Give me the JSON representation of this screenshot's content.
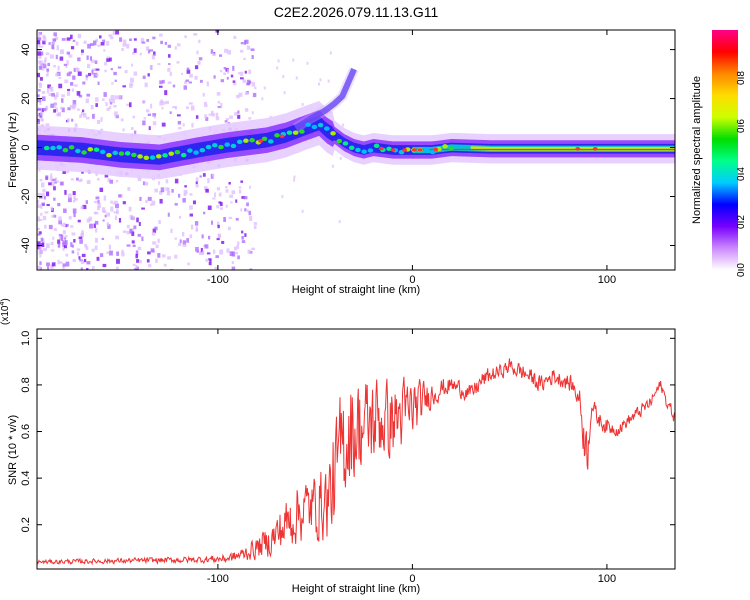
{
  "title": "C2E2.2026.079.11.13.G11",
  "chart_data": [
    {
      "type": "heatmap",
      "xlabel": "Height of straight line (km)",
      "ylabel": "Frequency (Hz)",
      "xlim": [
        -193,
        135
      ],
      "ylim": [
        -50,
        48
      ],
      "xticks": [
        -100,
        0,
        100
      ],
      "yticks": [
        -40,
        -20,
        0,
        20,
        40
      ],
      "grid": false,
      "ridge_frequency": {
        "x": [
          -193,
          -170,
          -150,
          -130,
          -110,
          -95,
          -85,
          -75,
          -65,
          -55,
          -48,
          -44,
          -40,
          -35,
          -30,
          -25,
          -20,
          -10,
          0,
          10,
          20,
          40,
          60,
          80,
          100,
          120,
          135
        ],
        "hz": [
          0,
          -1,
          -3,
          -4,
          -1,
          1,
          2,
          3,
          5,
          8,
          10,
          7,
          5,
          2,
          0,
          -1,
          0,
          -1,
          -1,
          -1,
          0,
          -0.5,
          -0.5,
          -0.5,
          -0.5,
          -0.5,
          -0.5
        ]
      },
      "upper_branch": {
        "x": [
          -60,
          -52,
          -45,
          -40,
          -36,
          -30
        ],
        "hz": [
          8,
          12,
          15,
          18,
          21,
          32
        ]
      },
      "colorbar": {
        "label": "Normalized spectral amplitude",
        "range": [
          0,
          1
        ],
        "ticks": [
          "0.0",
          "0.2",
          "0.4",
          "0.6",
          "0.8"
        ],
        "colors": [
          "#ffffff",
          "#cc88ff",
          "#7700ff",
          "#0000ff",
          "#00ccff",
          "#00ff88",
          "#00dd00",
          "#ccff00",
          "#ffdd00",
          "#ff8800",
          "#ff0000",
          "#ff0088"
        ]
      }
    },
    {
      "type": "line",
      "xlabel": "Height of straight line (km)",
      "ylabel": "SNR (10 * v/v)",
      "scale_label": "(x10",
      "scale_exponent": "4",
      "xlim": [
        -193,
        135
      ],
      "ylim": [
        0.01,
        1.04
      ],
      "xticks": [
        -100,
        0,
        100
      ],
      "yticks": [
        0.2,
        0.4,
        0.6,
        0.8,
        1.0
      ],
      "ytick_labels": [
        "0.2",
        "0.4",
        "0.6",
        "0.8",
        "1.0"
      ],
      "color": "#ee3333",
      "envelope": {
        "x": [
          -193,
          -150,
          -110,
          -95,
          -88,
          -80,
          -72,
          -65,
          -58,
          -50,
          -44,
          -40,
          -36,
          -32,
          -28,
          -24,
          -18,
          -12,
          -8,
          -4,
          0,
          4,
          8,
          14,
          20,
          26,
          30,
          36,
          40,
          46,
          50,
          55,
          60,
          66,
          72,
          78,
          82,
          86,
          88,
          90,
          92,
          95,
          100,
          106,
          110,
          116,
          122,
          126,
          128,
          130,
          135
        ],
        "mean": [
          0.04,
          0.045,
          0.05,
          0.055,
          0.07,
          0.1,
          0.14,
          0.2,
          0.26,
          0.28,
          0.3,
          0.38,
          0.55,
          0.6,
          0.62,
          0.62,
          0.66,
          0.64,
          0.66,
          0.68,
          0.7,
          0.72,
          0.75,
          0.78,
          0.8,
          0.78,
          0.76,
          0.82,
          0.84,
          0.86,
          0.88,
          0.86,
          0.84,
          0.8,
          0.84,
          0.82,
          0.8,
          0.74,
          0.6,
          0.5,
          0.72,
          0.66,
          0.62,
          0.61,
          0.64,
          0.68,
          0.72,
          0.78,
          0.8,
          0.74,
          0.66
        ],
        "amp": [
          0.01,
          0.012,
          0.015,
          0.02,
          0.03,
          0.05,
          0.08,
          0.12,
          0.14,
          0.15,
          0.18,
          0.24,
          0.28,
          0.26,
          0.24,
          0.22,
          0.2,
          0.18,
          0.17,
          0.16,
          0.14,
          0.1,
          0.07,
          0.05,
          0.04,
          0.04,
          0.04,
          0.04,
          0.04,
          0.03,
          0.04,
          0.04,
          0.04,
          0.04,
          0.04,
          0.04,
          0.04,
          0.05,
          0.12,
          0.1,
          0.05,
          0.04,
          0.04,
          0.03,
          0.03,
          0.03,
          0.03,
          0.03,
          0.03,
          0.03,
          0.03
        ]
      }
    }
  ]
}
